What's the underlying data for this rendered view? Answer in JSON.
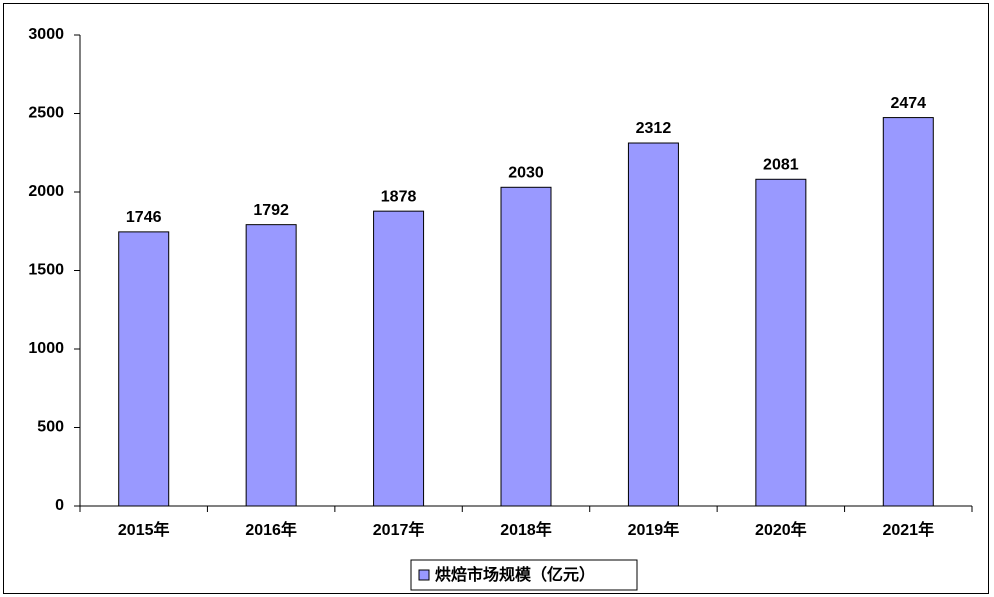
{
  "chart_data": {
    "type": "bar",
    "categories": [
      "2015年",
      "2016年",
      "2017年",
      "2018年",
      "2019年",
      "2020年",
      "2021年"
    ],
    "series": [
      {
        "name": "烘焙市场规模（亿元）",
        "color": "#9999ff",
        "values": [
          1746,
          1792,
          1878,
          2030,
          2312,
          2081,
          2474
        ]
      }
    ],
    "ylim": [
      0,
      3000
    ],
    "yticks": [
      0,
      500,
      1000,
      1500,
      2000,
      2500,
      3000
    ],
    "grid": false,
    "legend": "bottom",
    "value_labels_shown": true
  }
}
